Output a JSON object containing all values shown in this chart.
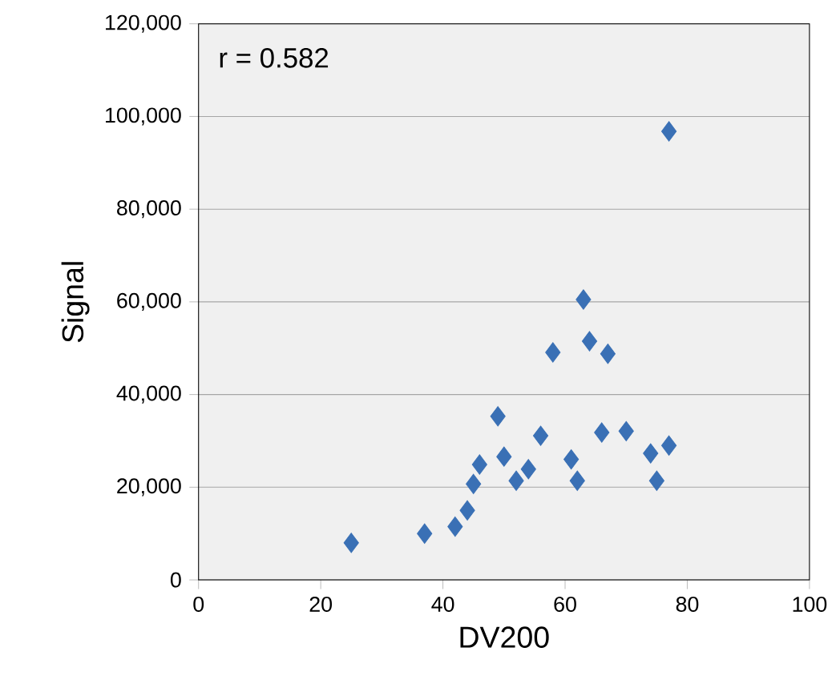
{
  "chart_data": {
    "type": "scatter",
    "xlabel": "DV200",
    "ylabel": "Signal",
    "annotations": [
      "r = 0.582"
    ],
    "color": "#3a70b5",
    "marker": "diamond",
    "grid": "y",
    "x": [
      25,
      37,
      42,
      44,
      45,
      46,
      49,
      50,
      52,
      54,
      56,
      58,
      61,
      62,
      63,
      64,
      66,
      67,
      70,
      74,
      75,
      77,
      77
    ],
    "values": [
      8000,
      10000,
      11500,
      15000,
      20700,
      24900,
      35300,
      26600,
      21400,
      23900,
      31100,
      49100,
      26000,
      21400,
      60500,
      51500,
      31800,
      48800,
      32100,
      27300,
      21400,
      29000,
      96800
    ],
    "xlim": [
      0,
      100
    ],
    "ylim": [
      0,
      120000
    ],
    "xticks": [
      0,
      20,
      40,
      60,
      80,
      100
    ],
    "yticks": [
      {
        "value": 0,
        "label": "0"
      },
      {
        "value": 20000,
        "label": "20,000"
      },
      {
        "value": 40000,
        "label": "40,000"
      },
      {
        "value": 60000,
        "label": "60,000"
      },
      {
        "value": 80000,
        "label": "80,000"
      },
      {
        "value": 100000,
        "label": "100,000"
      },
      {
        "value": 120000,
        "label": "120,000"
      }
    ]
  }
}
